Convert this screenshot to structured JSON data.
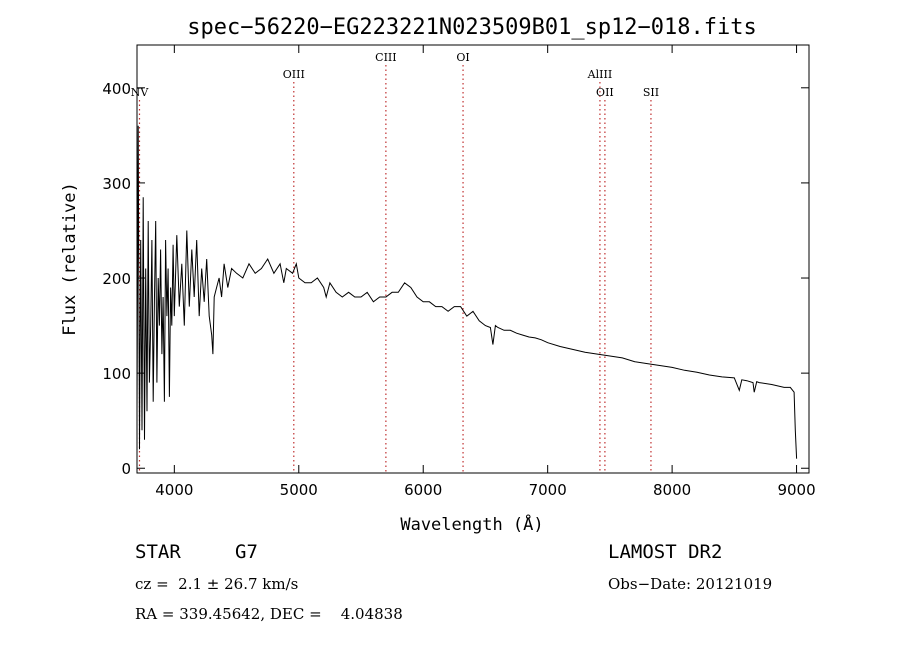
{
  "chart_data": {
    "type": "line",
    "title": "spec−56220−EG223221N023509B01_sp12−018.fits",
    "xlabel": "Wavelength (Å)",
    "ylabel": "Flux (relative)",
    "xlim": [
      3700,
      9100
    ],
    "ylim": [
      -5,
      445
    ],
    "x_ticks": [
      4000,
      5000,
      6000,
      7000,
      8000,
      9000
    ],
    "y_ticks": [
      0,
      100,
      200,
      300,
      400
    ],
    "grid": false,
    "line_color": "#000000",
    "marker_color": "#c03030",
    "series": [
      {
        "x": [
          3700,
          3710,
          3720,
          3730,
          3740,
          3750,
          3760,
          3770,
          3780,
          3790,
          3800,
          3810,
          3820,
          3830,
          3840,
          3850,
          3860,
          3870,
          3880,
          3890,
          3900,
          3910,
          3920,
          3930,
          3940,
          3950,
          3960,
          3970,
          3980,
          3990,
          4000,
          4020,
          4040,
          4060,
          4080,
          4100,
          4120,
          4140,
          4160,
          4180,
          4200,
          4220,
          4240,
          4260,
          4280,
          4300,
          4310,
          4320,
          4340,
          4360,
          4380,
          4400,
          4430,
          4460,
          4500,
          4550,
          4600,
          4650,
          4700,
          4750,
          4800,
          4850,
          4880,
          4900,
          4950,
          4980,
          5000,
          5050,
          5100,
          5150,
          5200,
          5220,
          5250,
          5300,
          5350,
          5400,
          5450,
          5500,
          5550,
          5600,
          5650,
          5700,
          5750,
          5800,
          5850,
          5900,
          5950,
          6000,
          6050,
          6100,
          6150,
          6200,
          6250,
          6300,
          6350,
          6400,
          6450,
          6500,
          6540,
          6560,
          6580,
          6600,
          6650,
          6700,
          6750,
          6800,
          6850,
          6900,
          6950,
          7000,
          7100,
          7200,
          7300,
          7400,
          7500,
          7600,
          7700,
          7800,
          7900,
          8000,
          8100,
          8200,
          8300,
          8400,
          8500,
          8540,
          8560,
          8600,
          8650,
          8660,
          8680,
          8700,
          8800,
          8900,
          8950,
          8980,
          8990,
          9000
        ],
        "y": [
          60,
          360,
          20,
          240,
          40,
          285,
          30,
          210,
          60,
          260,
          90,
          150,
          240,
          70,
          175,
          260,
          90,
          200,
          150,
          230,
          120,
          180,
          70,
          240,
          160,
          210,
          75,
          190,
          150,
          235,
          160,
          245,
          170,
          215,
          150,
          250,
          170,
          230,
          180,
          240,
          160,
          210,
          175,
          220,
          160,
          140,
          120,
          180,
          190,
          200,
          180,
          215,
          190,
          210,
          205,
          200,
          215,
          205,
          210,
          220,
          205,
          215,
          195,
          210,
          205,
          215,
          200,
          195,
          195,
          200,
          190,
          180,
          195,
          185,
          180,
          185,
          180,
          180,
          185,
          175,
          180,
          180,
          185,
          185,
          195,
          190,
          180,
          175,
          175,
          170,
          170,
          165,
          170,
          170,
          160,
          165,
          155,
          150,
          148,
          130,
          150,
          148,
          145,
          145,
          142,
          140,
          138,
          137,
          135,
          132,
          128,
          125,
          122,
          120,
          118,
          116,
          112,
          110,
          108,
          106,
          103,
          101,
          98,
          96,
          95,
          82,
          93,
          92,
          90,
          80,
          91,
          90,
          88,
          85,
          85,
          80,
          40,
          10
        ]
      }
    ],
    "line_markers": [
      {
        "label": "NV",
        "x": 3720,
        "label_row": 2
      },
      {
        "label": "OIII",
        "x": 4960,
        "label_row": 1
      },
      {
        "label": "CIII",
        "x": 5700,
        "label_row": 0
      },
      {
        "label": "OI",
        "x": 6320,
        "label_row": 0
      },
      {
        "label": "AlIII",
        "x": 7420,
        "label_row": 1
      },
      {
        "label": "OII",
        "x": 7460,
        "label_row": 2
      },
      {
        "label": "SII",
        "x": 7830,
        "label_row": 2
      }
    ]
  },
  "info": {
    "object_class": "STAR",
    "subclass": "G7",
    "redshift": "cz =  2.1 ± 26.7 km/s",
    "coords": "RA = 339.45642, DEC =    4.04838",
    "survey": "LAMOST DR2",
    "obs_date": "Obs−Date: 20121019"
  }
}
